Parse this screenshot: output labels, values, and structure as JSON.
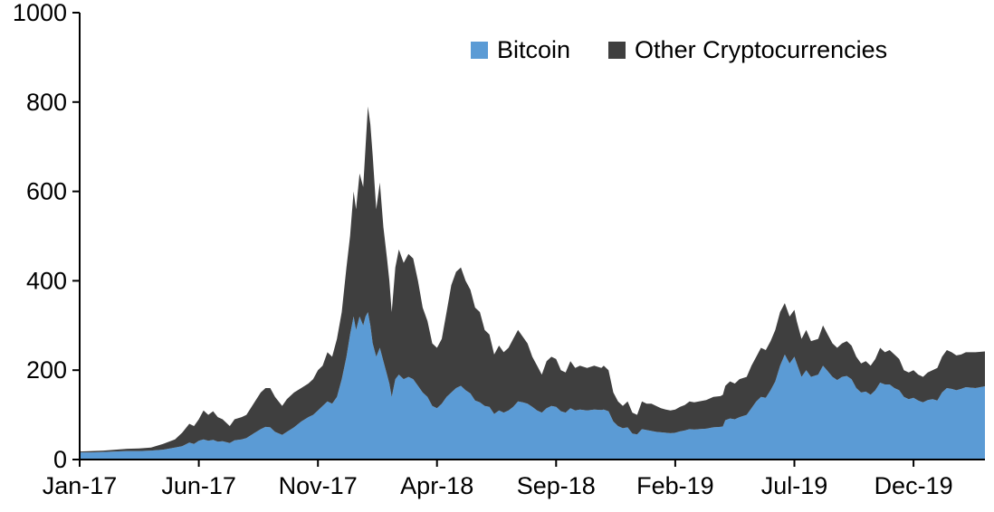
{
  "chart_data": {
    "type": "area",
    "stacked": true,
    "title": "",
    "xlabel": "",
    "ylabel": "",
    "ylim": [
      0,
      1000
    ],
    "y_ticks": [
      0,
      200,
      400,
      600,
      800,
      1000
    ],
    "x_max": 38,
    "x_axis_unit": "months since Jan-2017",
    "grid": false,
    "legend_position": "top",
    "x_ticks": [
      {
        "pos": 0,
        "label": "Jan-17"
      },
      {
        "pos": 5,
        "label": "Jun-17"
      },
      {
        "pos": 10,
        "label": "Nov-17"
      },
      {
        "pos": 15,
        "label": "Apr-18"
      },
      {
        "pos": 20,
        "label": "Sep-18"
      },
      {
        "pos": 25,
        "label": "Feb-19"
      },
      {
        "pos": 30,
        "label": "Jul-19"
      },
      {
        "pos": 35,
        "label": "Dec-19"
      }
    ],
    "x": [
      0,
      0.5,
      1,
      1.5,
      2,
      2.5,
      3,
      3.5,
      4,
      4.3,
      4.6,
      4.8,
      5,
      5.2,
      5.4,
      5.6,
      5.8,
      6,
      6.3,
      6.5,
      6.8,
      7,
      7.3,
      7.6,
      7.8,
      8,
      8.2,
      8.5,
      8.7,
      9,
      9.3,
      9.6,
      9.8,
      10,
      10.2,
      10.4,
      10.6,
      10.8,
      11,
      11.2,
      11.35,
      11.5,
      11.6,
      11.75,
      11.9,
      12,
      12.1,
      12.2,
      12.3,
      12.45,
      12.6,
      12.75,
      12.9,
      13,
      13.1,
      13.25,
      13.4,
      13.6,
      13.8,
      14,
      14.2,
      14.4,
      14.6,
      14.8,
      15,
      15.2,
      15.4,
      15.6,
      15.8,
      16,
      16.2,
      16.4,
      16.6,
      16.8,
      17,
      17.2,
      17.4,
      17.6,
      17.8,
      18,
      18.2,
      18.4,
      18.6,
      18.8,
      19,
      19.2,
      19.4,
      19.6,
      19.8,
      20,
      20.2,
      20.4,
      20.6,
      20.8,
      21,
      21.3,
      21.6,
      21.9,
      22,
      22.2,
      22.4,
      22.6,
      22.8,
      23,
      23.2,
      23.4,
      23.6,
      23.8,
      24,
      24.2,
      24.4,
      24.6,
      24.8,
      25,
      25.2,
      25.4,
      25.6,
      25.8,
      26,
      26.3,
      26.6,
      26.9,
      27,
      27.1,
      27.3,
      27.5,
      27.7,
      28,
      28.2,
      28.4,
      28.6,
      28.8,
      29,
      29.2,
      29.4,
      29.6,
      29.8,
      30,
      30.1,
      30.3,
      30.5,
      30.7,
      31,
      31.2,
      31.4,
      31.6,
      31.8,
      32,
      32.2,
      32.4,
      32.6,
      32.8,
      33,
      33.2,
      33.4,
      33.6,
      33.8,
      34,
      34.2,
      34.4,
      34.6,
      34.8,
      35,
      35.2,
      35.4,
      35.6,
      35.8,
      36,
      36.2,
      36.4,
      36.6,
      36.8,
      37,
      37.2,
      37.6,
      38
    ],
    "series": [
      {
        "name": "Bitcoin",
        "color": "#5B9BD5",
        "values": [
          16,
          16,
          17,
          18,
          19,
          19,
          20,
          22,
          27,
          30,
          38,
          35,
          42,
          45,
          42,
          44,
          40,
          41,
          37,
          43,
          45,
          48,
          58,
          68,
          73,
          72,
          62,
          55,
          62,
          72,
          85,
          95,
          100,
          110,
          120,
          130,
          125,
          140,
          180,
          230,
          280,
          320,
          290,
          320,
          300,
          320,
          330,
          300,
          260,
          230,
          250,
          220,
          190,
          170,
          140,
          180,
          190,
          180,
          185,
          180,
          165,
          150,
          140,
          120,
          115,
          125,
          140,
          150,
          160,
          165,
          155,
          148,
          132,
          128,
          120,
          118,
          102,
          110,
          105,
          110,
          118,
          130,
          128,
          125,
          118,
          110,
          105,
          115,
          120,
          118,
          108,
          105,
          115,
          110,
          112,
          110,
          112,
          111,
          112,
          108,
          85,
          75,
          70,
          72,
          58,
          56,
          68,
          66,
          64,
          62,
          61,
          60,
          59,
          60,
          63,
          65,
          68,
          67,
          68,
          69,
          72,
          73,
          74,
          88,
          92,
          90,
          95,
          100,
          115,
          130,
          140,
          138,
          155,
          175,
          210,
          235,
          215,
          230,
          215,
          185,
          200,
          185,
          190,
          210,
          198,
          185,
          178,
          185,
          187,
          180,
          160,
          150,
          152,
          145,
          155,
          172,
          168,
          168,
          160,
          155,
          140,
          135,
          138,
          132,
          128,
          133,
          135,
          132,
          150,
          160,
          158,
          155,
          158,
          162,
          160,
          164
        ]
      },
      {
        "name": "Other Cryptocurrencies",
        "color": "#3F3F3F",
        "values": [
          2,
          3,
          3,
          4,
          5,
          6,
          7,
          13,
          18,
          30,
          42,
          40,
          48,
          65,
          58,
          64,
          55,
          49,
          38,
          47,
          50,
          52,
          67,
          82,
          87,
          88,
          78,
          65,
          73,
          78,
          75,
          75,
          80,
          90,
          90,
          110,
          105,
          130,
          150,
          200,
          220,
          280,
          270,
          320,
          310,
          380,
          460,
          450,
          420,
          330,
          370,
          300,
          260,
          230,
          190,
          250,
          280,
          260,
          275,
          270,
          235,
          190,
          170,
          140,
          135,
          145,
          190,
          240,
          260,
          265,
          245,
          232,
          208,
          202,
          170,
          162,
          133,
          145,
          135,
          140,
          152,
          160,
          147,
          135,
          112,
          100,
          85,
          105,
          110,
          107,
          92,
          90,
          105,
          95,
          98,
          95,
          98,
          94,
          98,
          92,
          65,
          55,
          50,
          58,
          47,
          44,
          62,
          59,
          61,
          58,
          54,
          52,
          51,
          52,
          55,
          57,
          62,
          61,
          62,
          64,
          68,
          69,
          71,
          77,
          83,
          80,
          85,
          85,
          95,
          100,
          110,
          107,
          110,
          115,
          120,
          115,
          105,
          105,
          95,
          85,
          90,
          80,
          80,
          90,
          82,
          75,
          72,
          75,
          78,
          75,
          70,
          65,
          68,
          65,
          70,
          78,
          72,
          77,
          75,
          70,
          60,
          60,
          62,
          58,
          57,
          62,
          65,
          73,
          80,
          85,
          82,
          78,
          77,
          78,
          80,
          78
        ]
      }
    ],
    "axis_color": "#000000"
  }
}
